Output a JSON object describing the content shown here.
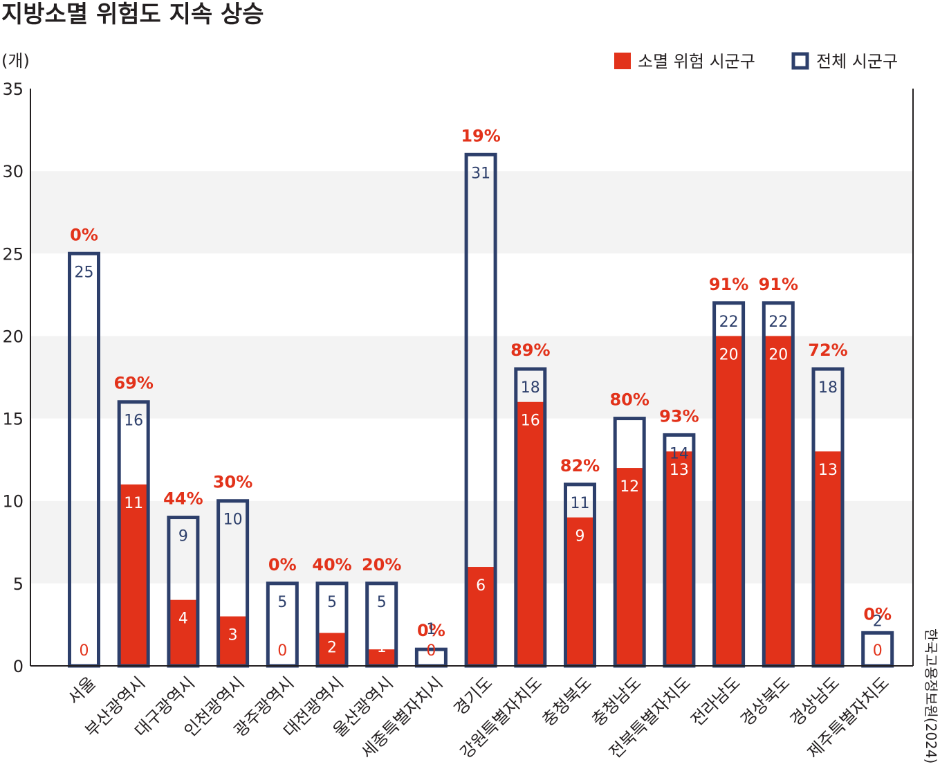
{
  "title": "지방소멸 위험도 지속 상승",
  "unit_label": "(개)",
  "source": "한국고용정보원(2024)",
  "legend": [
    {
      "label": "소멸 위험 시군구",
      "color": "#e2321a",
      "style": "filled"
    },
    {
      "label": "전체 시군구",
      "color": "#2d3f6b",
      "style": "outline"
    }
  ],
  "chart_data": {
    "type": "bar",
    "categories": [
      "서울",
      "부산광역시",
      "대구광역시",
      "인천광역시",
      "광주광역시",
      "대전광역시",
      "울산광역시",
      "세종특별자치시",
      "경기도",
      "강원특별자치도",
      "충청북도",
      "충청남도",
      "전북특별자치도",
      "전라남도",
      "경상북도",
      "경상남도",
      "제주특별자치도"
    ],
    "series": [
      {
        "name": "소멸 위험 시군구",
        "values": [
          0,
          11,
          4,
          3,
          0,
          2,
          1,
          0,
          6,
          16,
          9,
          12,
          13,
          20,
          20,
          13,
          0
        ],
        "color": "#e2321a"
      },
      {
        "name": "전체 시군구",
        "values": [
          25,
          16,
          9,
          10,
          5,
          5,
          5,
          1,
          31,
          18,
          11,
          15,
          14,
          22,
          22,
          18,
          2
        ],
        "color": "#2d3f6b"
      }
    ],
    "total_labels": [
      "25",
      "16",
      "9",
      "10",
      "5",
      "5",
      "5",
      "1",
      "31",
      "18",
      "11",
      "",
      "14",
      "22",
      "22",
      "18",
      "2"
    ],
    "percentages": [
      "0%",
      "69%",
      "44%",
      "30%",
      "0%",
      "40%",
      "20%",
      "0%",
      "19%",
      "89%",
      "82%",
      "80%",
      "93%",
      "91%",
      "91%",
      "72%",
      "0%"
    ],
    "ylim": [
      0,
      35
    ],
    "yticks": [
      "0",
      "5",
      "10",
      "15",
      "20",
      "25",
      "30",
      "35"
    ],
    "grid": "alternating horizontal bands"
  }
}
